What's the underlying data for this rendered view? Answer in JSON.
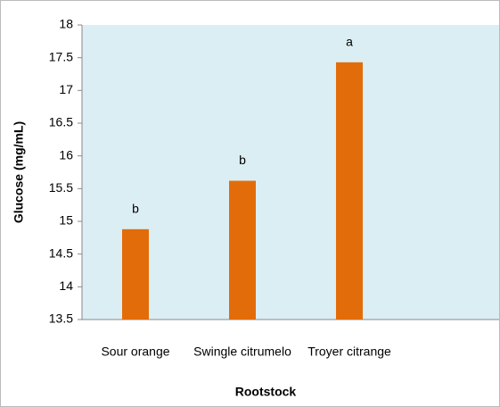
{
  "chart_data": {
    "type": "bar",
    "x_label": "Rootstock",
    "y_label": "Glucose (mg/mL)",
    "categories": [
      "Sour orange",
      "Swingle citrumelo",
      "Troyer citrange"
    ],
    "values": [
      14.88,
      15.62,
      17.43
    ],
    "annotations": [
      "b",
      "b",
      "a"
    ],
    "color": "#e36c0a",
    "background": "#dbeef3",
    "ylim": [
      13.5,
      18
    ],
    "yticks": [
      13.5,
      14,
      14.5,
      15,
      15.5,
      16,
      16.5,
      17,
      17.5,
      18
    ],
    "grid": false
  }
}
